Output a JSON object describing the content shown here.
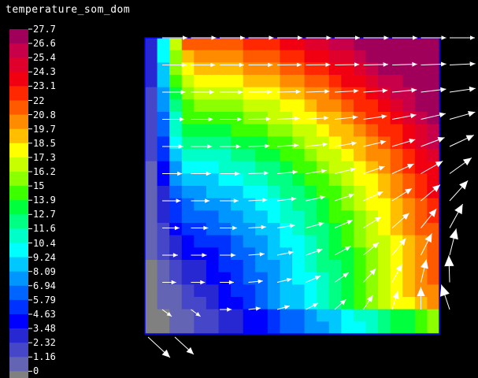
{
  "chart_data": {
    "type": "heatmap",
    "title": "temperature_som_dom",
    "colorbar": {
      "ticks": [
        "27.7",
        "26.6",
        "25.4",
        "24.3",
        "23.1",
        "22",
        "20.8",
        "19.7",
        "18.5",
        "17.3",
        "16.2",
        "15",
        "13.9",
        "12.7",
        "11.6",
        "10.4",
        "9.24",
        "8.09",
        "6.94",
        "5.79",
        "4.63",
        "3.48",
        "2.32",
        "1.16",
        "0"
      ],
      "colors": [
        "#a0005a",
        "#c8004a",
        "#e0002c",
        "#f00010",
        "#ff2800",
        "#ff5a00",
        "#ff8c00",
        "#ffbe00",
        "#ffff00",
        "#c8ff00",
        "#8cff00",
        "#3cff00",
        "#00ff3c",
        "#00ff82",
        "#00ffc8",
        "#00ffff",
        "#00c8ff",
        "#0096ff",
        "#0064ff",
        "#0032ff",
        "#0000ff",
        "#2828d2",
        "#4646c8",
        "#6464b4",
        "#808080"
      ],
      "min": 0,
      "max": 27.7
    },
    "field": "temperature increasing toward top-right corner, lowest along the left wall",
    "vectors": "velocity arrows overlay"
  }
}
